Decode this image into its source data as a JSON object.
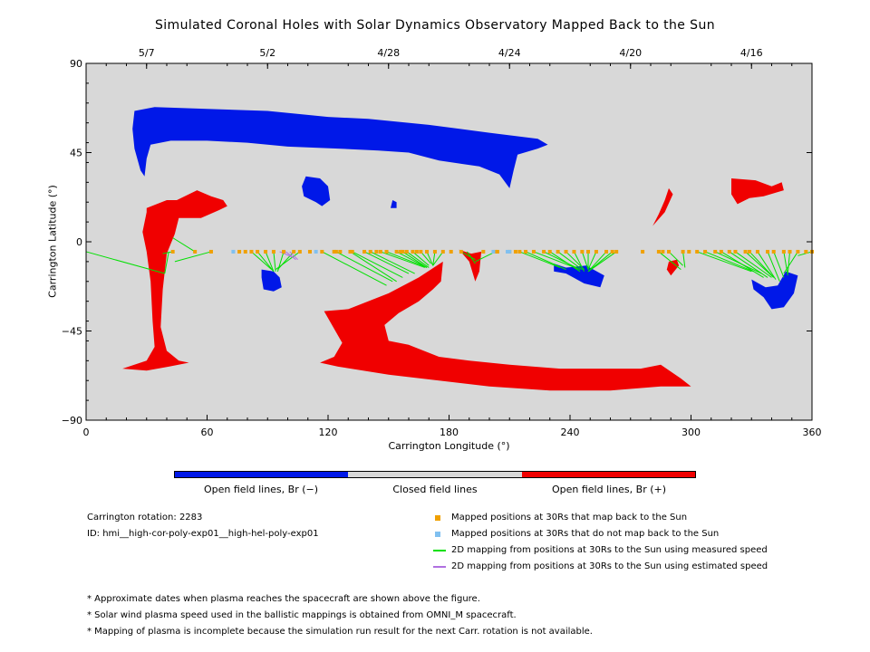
{
  "chart_data": {
    "type": "scatter",
    "title": "Simulated Coronal Holes with Solar Dynamics Observatory Mapped Back to the Sun",
    "xlabel": "Carrington Longitude (°)",
    "ylabel": "Carrington Latitude (°)",
    "xlim": [
      0,
      360
    ],
    "ylim": [
      -90,
      90
    ],
    "x_ticks": [
      0,
      60,
      120,
      180,
      240,
      300,
      360
    ],
    "y_ticks": [
      90,
      45,
      0,
      -45,
      -90
    ],
    "top_date_ticks": [
      {
        "label": "5/7",
        "lon": 30
      },
      {
        "label": "5/2",
        "lon": 90
      },
      {
        "label": "4/28",
        "lon": 150
      },
      {
        "label": "4/24",
        "lon": 210
      },
      {
        "label": "4/20",
        "lon": 270
      },
      {
        "label": "4/16",
        "lon": 330
      }
    ],
    "background_color": "#d8d8d8",
    "colors": {
      "open_neg": "#0018e8",
      "open_pos": "#f00000",
      "closed": "#d8d8d8",
      "mapped": "#f0a000",
      "unmapped": "#80c0f0",
      "measured": "#00e000",
      "estimated": "#b070e0"
    },
    "regions": [
      {
        "polarity": "neg",
        "points": [
          [
            24,
            66
          ],
          [
            34,
            68
          ],
          [
            60,
            67
          ],
          [
            90,
            66
          ],
          [
            120,
            63
          ],
          [
            140,
            62
          ],
          [
            170,
            59
          ],
          [
            200,
            55
          ],
          [
            224,
            52
          ],
          [
            229,
            49
          ],
          [
            224,
            47
          ],
          [
            214,
            44
          ],
          [
            212,
            36
          ],
          [
            210,
            27
          ],
          [
            205,
            34
          ],
          [
            195,
            38
          ],
          [
            175,
            41
          ],
          [
            160,
            45
          ],
          [
            145,
            46
          ],
          [
            125,
            47
          ],
          [
            100,
            48
          ],
          [
            80,
            50
          ],
          [
            60,
            51
          ],
          [
            42,
            51
          ],
          [
            32,
            49
          ],
          [
            30,
            42
          ],
          [
            29,
            33
          ],
          [
            27,
            36
          ],
          [
            24,
            47
          ],
          [
            23,
            57
          ]
        ]
      },
      {
        "polarity": "neg",
        "points": [
          [
            109,
            33
          ],
          [
            116,
            32
          ],
          [
            120,
            28
          ],
          [
            121,
            21
          ],
          [
            117,
            18
          ],
          [
            114,
            20
          ],
          [
            108,
            23
          ],
          [
            107,
            28
          ]
        ]
      },
      {
        "polarity": "neg",
        "points": [
          [
            152,
            21
          ],
          [
            154,
            20
          ],
          [
            154,
            17
          ],
          [
            151,
            17
          ]
        ]
      },
      {
        "polarity": "neg",
        "points": [
          [
            87,
            -14
          ],
          [
            93,
            -15
          ],
          [
            96,
            -18
          ],
          [
            97,
            -23
          ],
          [
            93,
            -25
          ],
          [
            88,
            -24
          ],
          [
            87,
            -18
          ]
        ]
      },
      {
        "polarity": "neg",
        "points": [
          [
            232,
            -11
          ],
          [
            238,
            -13
          ],
          [
            248,
            -12
          ],
          [
            257,
            -17
          ],
          [
            255,
            -23
          ],
          [
            247,
            -21
          ],
          [
            238,
            -16
          ],
          [
            232,
            -15
          ]
        ]
      },
      {
        "polarity": "neg",
        "points": [
          [
            330,
            -19
          ],
          [
            337,
            -23
          ],
          [
            343,
            -22
          ],
          [
            347,
            -15
          ],
          [
            353,
            -17
          ],
          [
            351,
            -26
          ],
          [
            346,
            -33
          ],
          [
            340,
            -34
          ],
          [
            336,
            -28
          ],
          [
            331,
            -24
          ]
        ]
      },
      {
        "polarity": "pos",
        "points": [
          [
            30,
            17
          ],
          [
            40,
            21
          ],
          [
            45,
            21
          ],
          [
            55,
            26
          ],
          [
            62,
            23
          ],
          [
            68,
            21
          ],
          [
            70,
            18
          ],
          [
            66,
            16
          ],
          [
            57,
            12
          ],
          [
            46,
            12
          ],
          [
            44,
            4
          ],
          [
            40,
            -6
          ],
          [
            38,
            -24
          ],
          [
            37,
            -43
          ],
          [
            40,
            -55
          ],
          [
            46,
            -60
          ],
          [
            51,
            -61
          ],
          [
            41,
            -63
          ],
          [
            30,
            -65
          ],
          [
            18,
            -64
          ],
          [
            30,
            -60
          ],
          [
            34,
            -53
          ],
          [
            33,
            -40
          ],
          [
            32,
            -20
          ],
          [
            30,
            -5
          ],
          [
            28,
            5
          ],
          [
            30,
            15
          ]
        ]
      },
      {
        "polarity": "pos",
        "points": [
          [
            118,
            -35
          ],
          [
            130,
            -34
          ],
          [
            150,
            -26
          ],
          [
            165,
            -18
          ],
          [
            177,
            -10
          ],
          [
            176,
            -20
          ],
          [
            172,
            -24
          ],
          [
            165,
            -30
          ],
          [
            155,
            -36
          ],
          [
            148,
            -42
          ],
          [
            150,
            -50
          ],
          [
            160,
            -52
          ],
          [
            175,
            -58
          ],
          [
            190,
            -60
          ],
          [
            210,
            -62
          ],
          [
            235,
            -64
          ],
          [
            275,
            -64
          ],
          [
            285,
            -62
          ],
          [
            295,
            -69
          ],
          [
            300,
            -73
          ],
          [
            285,
            -73
          ],
          [
            260,
            -75
          ],
          [
            230,
            -75
          ],
          [
            200,
            -73
          ],
          [
            175,
            -70
          ],
          [
            150,
            -67
          ],
          [
            125,
            -63
          ],
          [
            116,
            -61
          ],
          [
            123,
            -58
          ],
          [
            127,
            -51
          ]
        ]
      },
      {
        "polarity": "pos",
        "points": [
          [
            185,
            -4
          ],
          [
            190,
            -10
          ],
          [
            193,
            -20
          ],
          [
            195,
            -15
          ],
          [
            196,
            -5
          ],
          [
            191,
            -6
          ]
        ]
      },
      {
        "polarity": "pos",
        "points": [
          [
            289,
            -10
          ],
          [
            293,
            -9
          ],
          [
            294,
            -12
          ],
          [
            290,
            -17
          ],
          [
            288,
            -14
          ]
        ]
      },
      {
        "polarity": "pos",
        "points": [
          [
            289,
            27
          ],
          [
            291,
            24
          ],
          [
            287,
            15
          ],
          [
            281,
            8
          ],
          [
            284,
            14
          ],
          [
            287,
            21
          ]
        ]
      },
      {
        "polarity": "pos",
        "points": [
          [
            320,
            32
          ],
          [
            332,
            31
          ],
          [
            340,
            28
          ],
          [
            345,
            30
          ],
          [
            346,
            26
          ],
          [
            336,
            23
          ],
          [
            329,
            22
          ],
          [
            323,
            19
          ],
          [
            320,
            24
          ]
        ]
      }
    ],
    "series": [
      {
        "name": "Mapped positions at 30Rs that map back to the Sun",
        "marker": "square",
        "lons": [
          43,
          54,
          62,
          76,
          79,
          82,
          85,
          89,
          93,
          98,
          103,
          106,
          111,
          117,
          123,
          124,
          126,
          131,
          132,
          138,
          141,
          144,
          146,
          149,
          154,
          156,
          157,
          159,
          162,
          164,
          166,
          169,
          173,
          177,
          181,
          186,
          197,
          203,
          204,
          210,
          213,
          215,
          218,
          222,
          227,
          230,
          234,
          238,
          242,
          246,
          249,
          253,
          258,
          261,
          263,
          276,
          284,
          286,
          289,
          296,
          299,
          303,
          307,
          312,
          315,
          319,
          322,
          327,
          329,
          333,
          338,
          341,
          346,
          349,
          353,
          357,
          360
        ]
      },
      {
        "name": "Mapped positions at 30Rs that do not map back to the Sun",
        "marker": "square",
        "lons": [
          73,
          114,
          202,
          209,
          210
        ]
      },
      {
        "name": "2D mapping from positions at 30Rs to the Sun using measured speed",
        "marker": "line",
        "segments": [
          [
            0,
            -5,
            39,
            -16
          ],
          [
            41,
            -5,
            39,
            -16
          ],
          [
            43,
            -5,
            38,
            -6
          ],
          [
            54,
            -5,
            43,
            2
          ],
          [
            62,
            -5,
            44,
            -10
          ],
          [
            82,
            -5,
            92,
            -14
          ],
          [
            85,
            -5,
            93,
            -15
          ],
          [
            89,
            -5,
            93,
            -15
          ],
          [
            93,
            -5,
            94,
            -15
          ],
          [
            98,
            -5,
            95,
            -15
          ],
          [
            103,
            -5,
            95,
            -14
          ],
          [
            106,
            -5,
            94,
            -14
          ],
          [
            117,
            -5,
            149,
            -22
          ],
          [
            124,
            -5,
            152,
            -20
          ],
          [
            131,
            -5,
            154,
            -20
          ],
          [
            132,
            -5,
            157,
            -18
          ],
          [
            138,
            -5,
            160,
            -16
          ],
          [
            141,
            -5,
            163,
            -16
          ],
          [
            146,
            -5,
            168,
            -13
          ],
          [
            149,
            -5,
            169,
            -13
          ],
          [
            154,
            -5,
            169,
            -13
          ],
          [
            157,
            -5,
            169,
            -13
          ],
          [
            159,
            -5,
            170,
            -13
          ],
          [
            162,
            -5,
            170,
            -12
          ],
          [
            166,
            -5,
            171,
            -11
          ],
          [
            169,
            -5,
            172,
            -12
          ],
          [
            173,
            -5,
            172,
            -12
          ],
          [
            177,
            -5,
            172,
            -12
          ],
          [
            186,
            -5,
            193,
            -9
          ],
          [
            189,
            -5,
            193,
            -11
          ],
          [
            203,
            -5,
            193,
            -10
          ],
          [
            215,
            -5,
            235,
            -13
          ],
          [
            218,
            -5,
            238,
            -14
          ],
          [
            222,
            -5,
            245,
            -14
          ],
          [
            227,
            -5,
            245,
            -14
          ],
          [
            230,
            -5,
            245,
            -15
          ],
          [
            234,
            -5,
            246,
            -14
          ],
          [
            238,
            -5,
            247,
            -14
          ],
          [
            242,
            -5,
            247,
            -15
          ],
          [
            246,
            -5,
            249,
            -14
          ],
          [
            249,
            -5,
            249,
            -14
          ],
          [
            253,
            -5,
            249,
            -14
          ],
          [
            258,
            -5,
            249,
            -15
          ],
          [
            261,
            -5,
            249,
            -15
          ],
          [
            263,
            -5,
            249,
            -15
          ],
          [
            284,
            -5,
            295,
            -14
          ],
          [
            289,
            -5,
            296,
            -12
          ],
          [
            296,
            -5,
            297,
            -13
          ],
          [
            303,
            -5,
            330,
            -15
          ],
          [
            307,
            -5,
            331,
            -15
          ],
          [
            312,
            -5,
            335,
            -16
          ],
          [
            315,
            -5,
            336,
            -18
          ],
          [
            319,
            -5,
            338,
            -18
          ],
          [
            322,
            -5,
            340,
            -18
          ],
          [
            327,
            -5,
            341,
            -18
          ],
          [
            329,
            -5,
            341,
            -18
          ],
          [
            333,
            -5,
            342,
            -19
          ],
          [
            338,
            -5,
            344,
            -20
          ],
          [
            341,
            -5,
            346,
            -18
          ],
          [
            346,
            -5,
            348,
            -17
          ],
          [
            349,
            -5,
            348,
            -16
          ],
          [
            353,
            -5,
            346,
            -16
          ],
          [
            360,
            -5,
            353,
            -7
          ]
        ]
      },
      {
        "name": "2D mapping from positions at 30Rs to the Sun using estimated speed",
        "marker": "line",
        "segments": [
          [
            96,
            -5,
            103,
            -8
          ],
          [
            99,
            -5,
            104,
            -9
          ],
          [
            101,
            -5,
            105,
            -9
          ]
        ]
      }
    ],
    "colorbar": {
      "labels": [
        "Open field lines, Br (−)",
        "Closed field lines",
        "Open field lines, Br (+)"
      ],
      "colors": [
        "#0018e8",
        "#d8d8d8",
        "#f00000"
      ]
    }
  },
  "info": {
    "rotation": "Carrington rotation: 2283",
    "id": "ID: hmi__high-cor-poly-exp01__high-hel-poly-exp01"
  },
  "legend": [
    {
      "label": "Mapped positions at 30Rs that map back to the Sun",
      "color": "#f0a000",
      "kind": "square"
    },
    {
      "label": "Mapped positions at 30Rs that do not map back to the Sun",
      "color": "#80c0f0",
      "kind": "square"
    },
    {
      "label": "2D mapping from positions at 30Rs to the Sun using measured speed",
      "color": "#00e000",
      "kind": "line"
    },
    {
      "label": "2D mapping from positions at 30Rs to the Sun using estimated speed",
      "color": "#b070e0",
      "kind": "line"
    }
  ],
  "notes": [
    "* Approximate dates when plasma reaches the spacecraft are shown above the figure.",
    "* Solar wind plasma speed used in the ballistic mappings is obtained from OMNI_M spacecraft.",
    "* Mapping of plasma is incomplete because the simulation run result for the next Carr. rotation is not available."
  ]
}
